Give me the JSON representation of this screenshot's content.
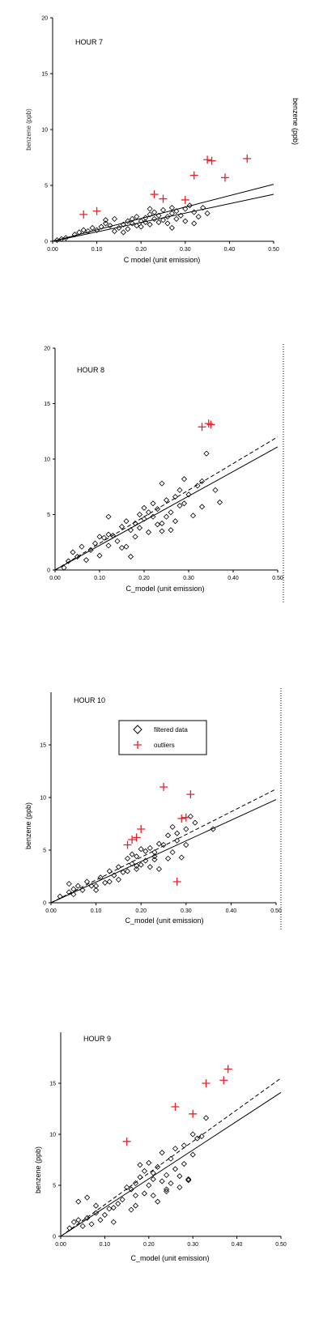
{
  "chart_data": [
    {
      "type": "scatter",
      "title": "HOUR 7",
      "xlabel": "C model (unit emission)",
      "ylabel": "benzene (ppb)",
      "ylabel_left_garbled": "benzene (ppb)",
      "xlim": [
        0,
        0.5
      ],
      "ylim": [
        0,
        20
      ],
      "xticks": [
        "0.00",
        "0.10",
        "0.20",
        "0.30",
        "0.40",
        "0.50"
      ],
      "yticks": [
        "0",
        "5",
        "10",
        "15",
        "20"
      ],
      "series": [
        {
          "marker": "diamond",
          "x": [
            0.01,
            0.02,
            0.03,
            0.05,
            0.06,
            0.07,
            0.08,
            0.09,
            0.1,
            0.11,
            0.12,
            0.13,
            0.14,
            0.15,
            0.16,
            0.17,
            0.17,
            0.18,
            0.18,
            0.19,
            0.19,
            0.2,
            0.2,
            0.21,
            0.21,
            0.22,
            0.22,
            0.23,
            0.23,
            0.24,
            0.24,
            0.25,
            0.25,
            0.26,
            0.26,
            0.27,
            0.27,
            0.28,
            0.28,
            0.29,
            0.3,
            0.3,
            0.31,
            0.32,
            0.33,
            0.34,
            0.35,
            0.12,
            0.14,
            0.16,
            0.22,
            0.27,
            0.32
          ],
          "y": [
            0.1,
            0.2,
            0.3,
            0.6,
            0.8,
            1.0,
            0.9,
            1.2,
            1.0,
            1.3,
            1.6,
            1.4,
            0.9,
            1.2,
            1.5,
            1.8,
            1.1,
            1.6,
            2.0,
            1.4,
            2.2,
            1.8,
            1.3,
            2.1,
            1.7,
            2.4,
            1.5,
            2.0,
            2.6,
            1.7,
            2.3,
            1.9,
            2.8,
            2.2,
            1.6,
            2.5,
            3.0,
            2.0,
            2.7,
            2.3,
            2.9,
            1.8,
            3.2,
            2.6,
            2.2,
            3.0,
            2.5,
            1.9,
            2.0,
            0.8,
            2.9,
            1.2,
            1.6
          ]
        },
        {
          "marker": "plus",
          "color": "#e8202a",
          "x": [
            0.07,
            0.1,
            0.23,
            0.25,
            0.3,
            0.32,
            0.35,
            0.36,
            0.39,
            0.44
          ],
          "y": [
            2.4,
            2.7,
            4.2,
            3.8,
            3.7,
            5.9,
            7.3,
            7.2,
            5.7,
            7.4
          ]
        }
      ],
      "lines": [
        {
          "style": "solid",
          "x": [
            0,
            0.5
          ],
          "y": [
            0,
            5.1
          ]
        },
        {
          "style": "solid",
          "x": [
            0,
            0.5
          ],
          "y": [
            0,
            4.2
          ]
        }
      ]
    },
    {
      "type": "scatter",
      "title": "HOUR 8",
      "xlabel": "C_model (unit emission)",
      "ylabel": "",
      "xlim": [
        0,
        0.5
      ],
      "ylim": [
        0,
        20
      ],
      "xticks": [
        "0.00",
        "0.10",
        "0.20",
        "0.30",
        "0.40",
        "0.50"
      ],
      "yticks": [
        "0",
        "5",
        "10",
        "15",
        "20"
      ],
      "series": [
        {
          "marker": "diamond",
          "x": [
            0.02,
            0.03,
            0.04,
            0.05,
            0.06,
            0.07,
            0.08,
            0.09,
            0.1,
            0.11,
            0.12,
            0.12,
            0.13,
            0.14,
            0.15,
            0.16,
            0.16,
            0.17,
            0.17,
            0.18,
            0.18,
            0.19,
            0.19,
            0.2,
            0.2,
            0.21,
            0.21,
            0.22,
            0.22,
            0.23,
            0.23,
            0.24,
            0.24,
            0.25,
            0.25,
            0.26,
            0.26,
            0.27,
            0.27,
            0.28,
            0.28,
            0.29,
            0.3,
            0.31,
            0.32,
            0.33,
            0.34,
            0.36,
            0.37,
            0.1,
            0.12,
            0.15,
            0.24,
            0.29,
            0.33
          ],
          "y": [
            0.2,
            0.8,
            1.6,
            1.2,
            2.1,
            0.9,
            1.8,
            2.4,
            1.3,
            2.9,
            2.2,
            4.8,
            3.1,
            2.6,
            3.9,
            2.1,
            4.4,
            3.6,
            1.2,
            4.2,
            3.0,
            5.0,
            3.8,
            4.6,
            5.6,
            3.4,
            5.2,
            4.8,
            6.0,
            4.1,
            5.5,
            3.5,
            7.8,
            4.8,
            6.3,
            5.2,
            3.6,
            6.6,
            4.4,
            5.8,
            7.2,
            8.2,
            6.8,
            4.9,
            7.6,
            8.0,
            10.5,
            7.2,
            6.1,
            3.0,
            3.2,
            2.0,
            4.2,
            6.0,
            5.7
          ]
        },
        {
          "marker": "plus",
          "color": "#e8202a",
          "x": [
            0.33,
            0.345,
            0.35
          ],
          "y": [
            12.9,
            13.2,
            13.1
          ]
        }
      ],
      "lines": [
        {
          "style": "dashed",
          "x": [
            0,
            0.5
          ],
          "y": [
            0,
            12.0
          ]
        },
        {
          "style": "solid",
          "x": [
            0,
            0.5
          ],
          "y": [
            0,
            11.1
          ]
        }
      ]
    },
    {
      "type": "scatter",
      "title": "HOUR 10",
      "xlabel": "C_model (unit emission)",
      "ylabel": "benzene (ppb)",
      "xlim": [
        0,
        0.5
      ],
      "ylim": [
        0,
        20
      ],
      "xticks": [
        "0.00",
        "0.10",
        "0.20",
        "0.30",
        "0.40",
        "0.50"
      ],
      "yticks": [
        "0",
        "5",
        "10",
        "15"
      ],
      "legend": {
        "position": "upper-center",
        "entries": [
          {
            "marker": "diamond",
            "label": "filtered data"
          },
          {
            "marker": "plus",
            "color": "#e8202a",
            "label": "outliers"
          }
        ]
      },
      "series": [
        {
          "name": "filtered data",
          "marker": "diamond",
          "x": [
            0.02,
            0.04,
            0.04,
            0.05,
            0.06,
            0.07,
            0.08,
            0.09,
            0.1,
            0.11,
            0.12,
            0.13,
            0.14,
            0.15,
            0.15,
            0.16,
            0.17,
            0.17,
            0.18,
            0.18,
            0.19,
            0.19,
            0.2,
            0.2,
            0.21,
            0.21,
            0.22,
            0.22,
            0.23,
            0.23,
            0.24,
            0.24,
            0.25,
            0.26,
            0.26,
            0.27,
            0.27,
            0.28,
            0.28,
            0.29,
            0.3,
            0.3,
            0.31,
            0.32,
            0.36,
            0.05,
            0.1,
            0.13,
            0.19,
            0.23
          ],
          "y": [
            0.6,
            1.8,
            1.0,
            1.3,
            1.6,
            1.2,
            2.0,
            1.6,
            1.2,
            2.4,
            1.9,
            3.0,
            2.6,
            2.2,
            3.4,
            2.9,
            4.2,
            3.0,
            3.7,
            4.6,
            3.2,
            4.4,
            5.1,
            3.6,
            4.0,
            4.9,
            3.4,
            5.2,
            4.4,
            4.1,
            5.6,
            3.2,
            5.5,
            4.2,
            6.4,
            7.2,
            4.8,
            5.9,
            6.6,
            4.3,
            7.0,
            5.5,
            8.2,
            7.6,
            7.0,
            0.8,
            1.6,
            2.0,
            3.5,
            4.8
          ]
        },
        {
          "name": "outliers",
          "marker": "plus",
          "color": "#e8202a",
          "x": [
            0.17,
            0.18,
            0.19,
            0.2,
            0.25,
            0.28,
            0.29,
            0.3,
            0.31
          ],
          "y": [
            5.5,
            6.0,
            6.2,
            7.0,
            11.0,
            2.0,
            8.0,
            8.1,
            10.3
          ]
        }
      ],
      "lines": [
        {
          "style": "dashed",
          "x": [
            0,
            0.5
          ],
          "y": [
            0,
            10.8
          ]
        },
        {
          "style": "solid",
          "x": [
            0,
            0.5
          ],
          "y": [
            0,
            9.8
          ]
        }
      ]
    },
    {
      "type": "scatter",
      "title": "HOUR 9",
      "xlabel": "C_model (unit emission)",
      "ylabel": "benzene (ppb)",
      "xlim": [
        0,
        0.5
      ],
      "ylim": [
        0,
        20
      ],
      "xticks": [
        "0.00",
        "0.10",
        "0.20",
        "0.30",
        "0.40",
        "0.50"
      ],
      "yticks": [
        "0",
        "5",
        "10",
        "15"
      ],
      "series": [
        {
          "marker": "diamond",
          "x": [
            0.02,
            0.03,
            0.04,
            0.05,
            0.06,
            0.06,
            0.07,
            0.08,
            0.09,
            0.1,
            0.11,
            0.12,
            0.13,
            0.14,
            0.15,
            0.16,
            0.16,
            0.17,
            0.17,
            0.18,
            0.18,
            0.19,
            0.19,
            0.2,
            0.2,
            0.21,
            0.21,
            0.22,
            0.22,
            0.23,
            0.23,
            0.24,
            0.24,
            0.25,
            0.25,
            0.26,
            0.26,
            0.27,
            0.27,
            0.28,
            0.28,
            0.29,
            0.3,
            0.3,
            0.31,
            0.32,
            0.33,
            0.04,
            0.08,
            0.12,
            0.17,
            0.21,
            0.24,
            0.29
          ],
          "y": [
            0.8,
            1.4,
            3.4,
            1.0,
            1.8,
            3.8,
            1.2,
            2.3,
            1.6,
            2.1,
            2.7,
            1.4,
            3.2,
            3.6,
            4.8,
            2.6,
            4.6,
            3.0,
            5.2,
            5.8,
            7.0,
            4.2,
            6.4,
            5.0,
            7.2,
            4.0,
            5.6,
            6.8,
            3.4,
            5.4,
            8.2,
            4.6,
            6.0,
            7.6,
            5.2,
            8.6,
            6.6,
            4.8,
            5.9,
            7.1,
            8.9,
            5.5,
            10.0,
            8.0,
            9.6,
            9.8,
            11.6,
            1.6,
            3.0,
            2.8,
            4.0,
            6.2,
            4.4,
            5.6
          ]
        },
        {
          "marker": "plus",
          "color": "#e8202a",
          "x": [
            0.15,
            0.26,
            0.3,
            0.33,
            0.37,
            0.38
          ],
          "y": [
            9.3,
            12.7,
            12.0,
            15.0,
            15.3,
            16.4
          ]
        }
      ],
      "lines": [
        {
          "style": "dashed",
          "x": [
            0,
            0.5
          ],
          "y": [
            0,
            15.5
          ]
        },
        {
          "style": "solid",
          "x": [
            0,
            0.5
          ],
          "y": [
            0,
            14.1
          ]
        }
      ]
    }
  ]
}
